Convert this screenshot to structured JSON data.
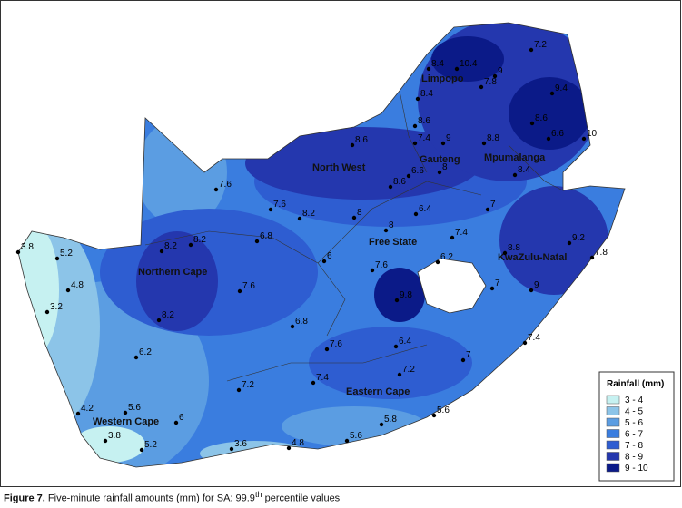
{
  "regions": [
    "Limpopo",
    "Mpumalanga",
    "Gauteng",
    "North West",
    "Free State",
    "KwaZulu-Natal",
    "Northern Cape",
    "Eastern Cape",
    "Western Cape"
  ],
  "stations": [
    "7.2",
    "10.4",
    "8.4",
    "9",
    "7.8",
    "9.4",
    "8.4",
    "8.6",
    "8.6",
    "6.6",
    "10",
    "9",
    "7.4",
    "8.6",
    "8.8",
    "8.4",
    "8",
    "8.6",
    "6.6",
    "7.6",
    "7.6",
    "8.2",
    "8",
    "7",
    "6.4",
    "8",
    "7.4",
    "8.8",
    "9.2",
    "7.8",
    "3.8",
    "5.2",
    "8.2",
    "8.2",
    "6.8",
    "6",
    "6.2",
    "4.8",
    "7.6",
    "7",
    "9.8",
    "9",
    "3.2",
    "7.6",
    "8.2",
    "6.8",
    "7.6",
    "6.4",
    "7.4",
    "7",
    "6.2",
    "7.2",
    "7.4",
    "7.2",
    "4.2",
    "5.6",
    "6",
    "5.8",
    "5.6",
    "3.8",
    "5.2",
    "3.6",
    "4.8",
    "5.6"
  ],
  "legend": {
    "title": "Rainfall (mm)",
    "items": [
      {
        "label": "3 - 4",
        "color": "#c6f1f1"
      },
      {
        "label": "4 - 5",
        "color": "#8cc4e8"
      },
      {
        "label": "5 - 6",
        "color": "#5b9de2"
      },
      {
        "label": "6 - 7",
        "color": "#3a7ddf"
      },
      {
        "label": "7 - 8",
        "color": "#2e5dd1"
      },
      {
        "label": "8 - 9",
        "color": "#2437ae"
      },
      {
        "label": "9 - 10",
        "color": "#0b1a88"
      }
    ]
  },
  "caption": {
    "label": "Figure 7.",
    "text": "Five-minute rainfall amounts (mm) for SA: 99.9",
    "superscript": "th",
    "tail": " percentile values"
  }
}
